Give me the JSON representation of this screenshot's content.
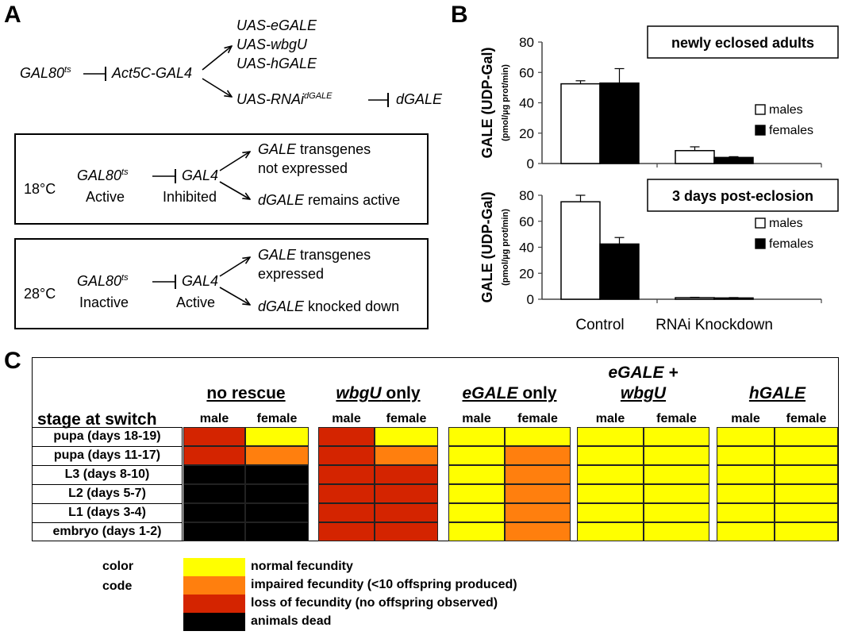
{
  "panel_a": {
    "letter": "A",
    "top": {
      "gal80": "GAL80",
      "gal80_sup": "ts",
      "driver": "Act5C-GAL4",
      "uas_egale": "UAS-eGALE",
      "uas_wbgu": "UAS-wbgU",
      "uas_hgale": "UAS-hGALE",
      "uas_rnai": "UAS-RNAi",
      "uas_rnai_sup": "dGALE",
      "dgale": "dGALE"
    },
    "box18": {
      "temp": "18°C",
      "gal80": "GAL80",
      "gal80_sup": "ts",
      "gal80_state": "Active",
      "gal4": "GAL4",
      "gal4_state": "Inhibited",
      "out1_gene": "GALE",
      "out1_text": " transgenes",
      "out1_line2": "not expressed",
      "out2_gene": "dGALE",
      "out2_text": "  remains active"
    },
    "box28": {
      "temp": "28°C",
      "gal80": "GAL80",
      "gal80_sup": "ts",
      "gal80_state": "Inactive",
      "gal4": "GAL4",
      "gal4_state": "Active",
      "out1_gene": "GALE",
      "out1_text": " transgenes",
      "out1_line2": "expressed",
      "out2_gene": "dGALE",
      "out2_text": "  knocked down"
    }
  },
  "panel_b": {
    "letter": "B",
    "x_categories": [
      "Control",
      "RNAi Knockdown"
    ],
    "ylabel_main": "GALE (UDP-Gal)",
    "ylabel_unit": "(pmol/µg prot/min)"
  },
  "chart_data": [
    {
      "type": "bar",
      "title": "newly eclosed adults",
      "categories": [
        "Control",
        "RNAi Knockdown"
      ],
      "series": [
        {
          "name": "males",
          "values": [
            52.5,
            8.5
          ],
          "errors": [
            2,
            2.5
          ],
          "color": "#ffffff"
        },
        {
          "name": "females",
          "values": [
            53,
            4
          ],
          "errors": [
            9.5,
            0.5
          ],
          "color": "#000000"
        }
      ],
      "ylim": [
        0,
        80
      ],
      "yticks": [
        0,
        20,
        40,
        60,
        80
      ],
      "ylabel": "GALE (UDP-Gal) (pmol/µg prot/min)",
      "legend": "right"
    },
    {
      "type": "bar",
      "title": "3 days post-eclosion",
      "categories": [
        "Control",
        "RNAi Knockdown"
      ],
      "series": [
        {
          "name": "males",
          "values": [
            75,
            1.2
          ],
          "errors": [
            5,
            0.3
          ],
          "color": "#ffffff"
        },
        {
          "name": "females",
          "values": [
            42.5,
            1
          ],
          "errors": [
            5,
            0.3
          ],
          "color": "#000000"
        }
      ],
      "ylim": [
        0,
        80
      ],
      "yticks": [
        0,
        20,
        40,
        60,
        80
      ],
      "ylabel": "GALE (UDP-Gal) (pmol/µg prot/min)",
      "legend": "right"
    }
  ],
  "panel_c": {
    "letter": "C",
    "stage_header": "stage at switch",
    "stages": [
      "pupa (days 18-19)",
      "pupa (days 11-17)",
      "L3 (days 8-10)",
      "L2 (days 5-7)",
      "L1 (days 3-4)",
      "embryo (days 1-2)"
    ],
    "sex_labels": [
      "male",
      "female"
    ],
    "groups": [
      {
        "key": "nr",
        "label_parts": [
          {
            "t": "no rescue",
            "it": false
          }
        ],
        "male": [
          "red",
          "red",
          "black",
          "black",
          "black",
          "black"
        ],
        "female": [
          "yellow",
          "orange",
          "black",
          "black",
          "black",
          "black"
        ]
      },
      {
        "key": "wb",
        "label_parts": [
          {
            "t": "wbgU",
            "it": true
          },
          {
            "t": " only",
            "it": false
          }
        ],
        "male": [
          "red",
          "red",
          "red",
          "red",
          "red",
          "red"
        ],
        "female": [
          "yellow",
          "orange",
          "red",
          "red",
          "red",
          "red"
        ]
      },
      {
        "key": "eg",
        "label_parts": [
          {
            "t": "eGALE",
            "it": true
          },
          {
            "t": " only",
            "it": false
          }
        ],
        "male": [
          "yellow",
          "yellow",
          "yellow",
          "yellow",
          "yellow",
          "yellow"
        ],
        "female": [
          "yellow",
          "orange",
          "orange",
          "orange",
          "orange",
          "orange"
        ]
      },
      {
        "key": "ew",
        "label_line1": "eGALE +",
        "label_line2": "wbgU",
        "male": [
          "yellow",
          "yellow",
          "yellow",
          "yellow",
          "yellow",
          "yellow"
        ],
        "female": [
          "yellow",
          "yellow",
          "yellow",
          "yellow",
          "yellow",
          "yellow"
        ]
      },
      {
        "key": "hg",
        "label_parts": [
          {
            "t": "hGALE",
            "it": true
          }
        ],
        "male": [
          "yellow",
          "yellow",
          "yellow",
          "yellow",
          "yellow",
          "yellow"
        ],
        "female": [
          "yellow",
          "yellow",
          "yellow",
          "yellow",
          "yellow",
          "yellow"
        ]
      }
    ],
    "colors": {
      "yellow": "#ffff00",
      "orange": "#ff7f0e",
      "red": "#d42400",
      "black": "#000000"
    },
    "legend_title1": "color",
    "legend_title2": "code",
    "legend": [
      {
        "color": "yellow",
        "text": "normal fecundity"
      },
      {
        "color": "orange",
        "text": "impaired fecundity (<10 offspring produced)"
      },
      {
        "color": "red",
        "text": "loss of fecundity (no offspring observed)"
      },
      {
        "color": "black",
        "text": "animals dead"
      }
    ]
  }
}
